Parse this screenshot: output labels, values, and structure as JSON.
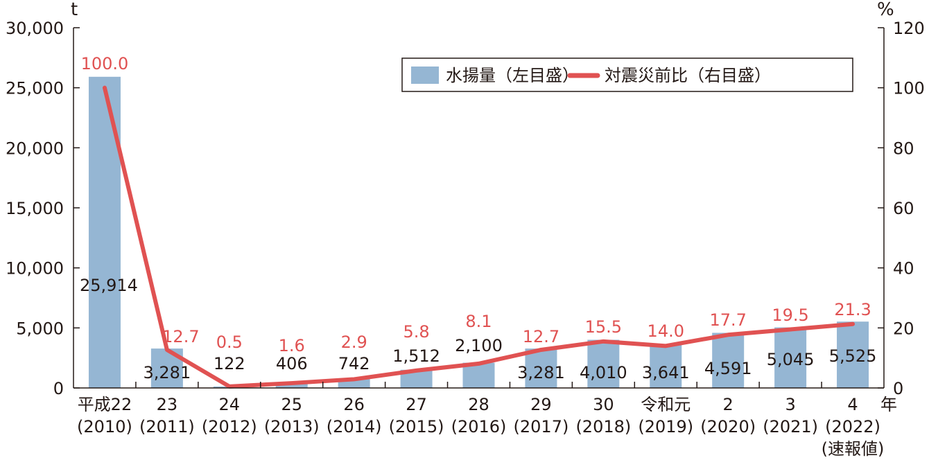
{
  "chart_data": {
    "type": "bar+line",
    "title": "",
    "categories": [
      "平成22",
      "23",
      "24",
      "25",
      "26",
      "27",
      "28",
      "29",
      "30",
      "令和元",
      "2",
      "3",
      "4"
    ],
    "categories_sub": [
      "(2010)",
      "(2011)",
      "(2012)",
      "(2013)",
      "(2014)",
      "(2015)",
      "(2016)",
      "(2017)",
      "(2018)",
      "(2019)",
      "(2020)",
      "(2021)",
      "(2022)"
    ],
    "categories_note": [
      "",
      "",
      "",
      "",
      "",
      "",
      "",
      "",
      "",
      "",
      "",
      "",
      "(速報値)"
    ],
    "x_unit": "年",
    "series": [
      {
        "name": "水揚量（左目盛）",
        "type": "bar",
        "axis": "left",
        "color": "#95b6d3",
        "values": [
          25914,
          3281,
          122,
          406,
          742,
          1512,
          2100,
          3281,
          4010,
          3641,
          4591,
          5045,
          5525
        ],
        "labels": [
          "25,914",
          "3,281",
          "122",
          "406",
          "742",
          "1,512",
          "2,100",
          "3,281",
          "4,010",
          "3,641",
          "4,591",
          "5,045",
          "5,525"
        ]
      },
      {
        "name": "対震災前比（右目盛）",
        "type": "line",
        "axis": "right",
        "color": "#e05252",
        "values": [
          100.0,
          12.7,
          0.5,
          1.6,
          2.9,
          5.8,
          8.1,
          12.7,
          15.5,
          14.0,
          17.7,
          19.5,
          21.3
        ],
        "labels": [
          "100.0",
          "12.7",
          "0.5",
          "1.6",
          "2.9",
          "5.8",
          "8.1",
          "12.7",
          "15.5",
          "14.0",
          "17.7",
          "19.5",
          "21.3"
        ]
      }
    ],
    "y_left": {
      "unit": "t",
      "ylim": [
        0,
        30000
      ],
      "ticks": [
        0,
        5000,
        10000,
        15000,
        20000,
        25000,
        30000
      ],
      "tick_labels": [
        "0",
        "5,000",
        "10,000",
        "15,000",
        "20,000",
        "25,000",
        "30,000"
      ]
    },
    "y_right": {
      "unit": "%",
      "ylim": [
        0,
        120
      ],
      "ticks": [
        0,
        20,
        40,
        60,
        80,
        100,
        120
      ],
      "tick_labels": [
        "0",
        "20",
        "40",
        "60",
        "80",
        "100",
        "120"
      ]
    },
    "grid": false,
    "legend_position": "top-right-inside"
  },
  "legend": {
    "bar_label": "水揚量（左目盛）",
    "line_label": "対震災前比（右目盛）"
  }
}
